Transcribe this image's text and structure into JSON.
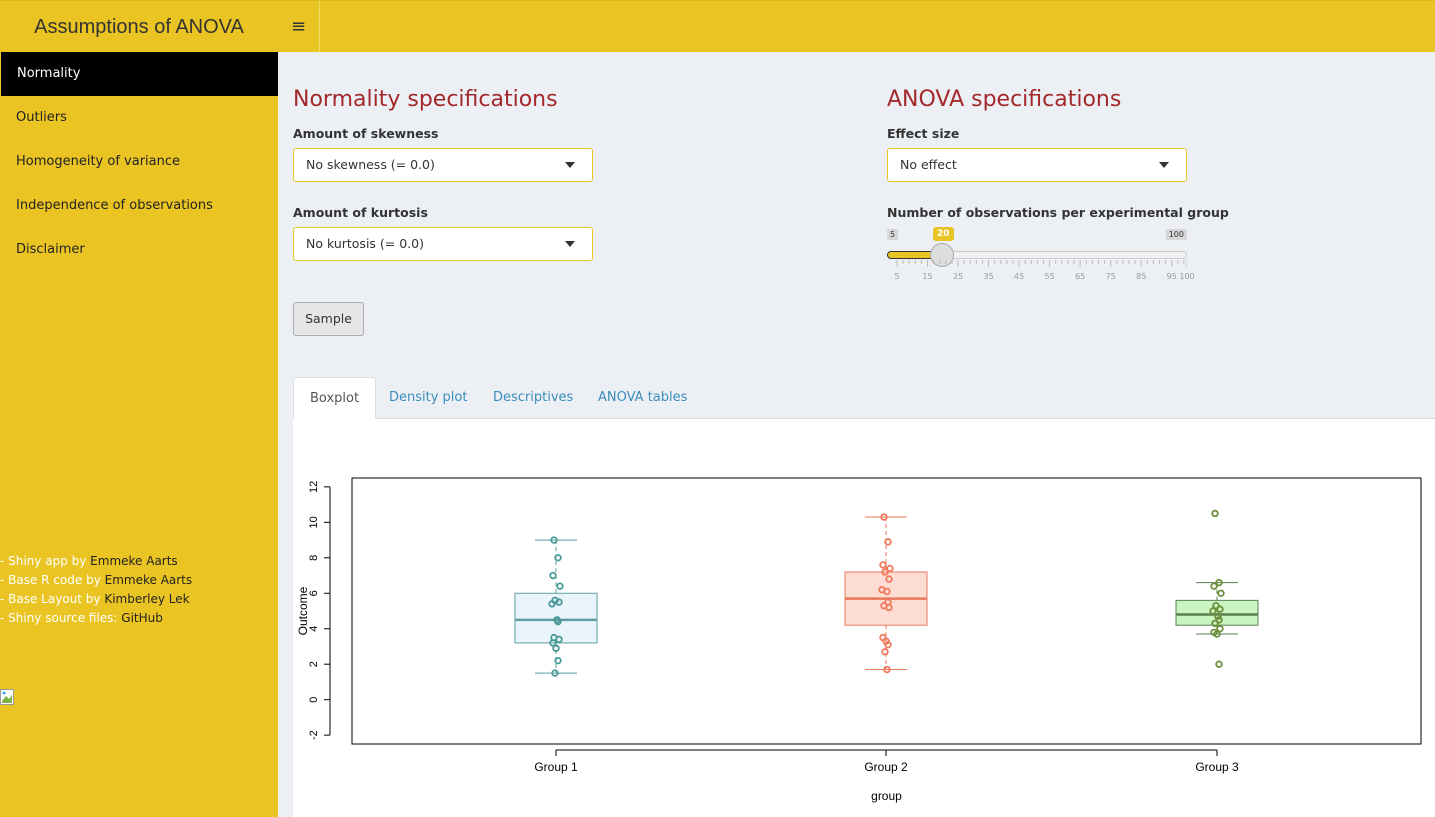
{
  "header": {
    "title": "Assumptions of ANOVA",
    "menu_icon": "hamburger-icon"
  },
  "sidebar": {
    "items": [
      {
        "label": "Normality"
      },
      {
        "label": "Outliers"
      },
      {
        "label": "Homogeneity of variance"
      },
      {
        "label": "Independence of observations"
      },
      {
        "label": "Disclaimer"
      }
    ],
    "credits": [
      {
        "prefix": "- Shiny app by ",
        "name": "Emmeke Aarts"
      },
      {
        "prefix": "- Base R code by ",
        "name": "Emmeke Aarts"
      },
      {
        "prefix": "- Base Layout by ",
        "name": "Kimberley Lek"
      },
      {
        "prefix": "- Shiny source files: ",
        "name": "GitHub"
      }
    ]
  },
  "normality": {
    "title": "Normality specifications",
    "skew_label": "Amount of skewness",
    "skew_value": "No skewness (= 0.0)",
    "kurt_label": "Amount of kurtosis",
    "kurt_value": "No kurtosis (= 0.0)",
    "sample_button": "Sample"
  },
  "anova": {
    "title": "ANOVA specifications",
    "effect_label": "Effect size",
    "effect_value": "No effect",
    "n_label": "Number of observations per experimental group",
    "slider_min": "5",
    "slider_max": "100",
    "slider_value": "20",
    "slider_ticks": [
      "5",
      "15",
      "25",
      "35",
      "45",
      "55",
      "65",
      "75",
      "85",
      "95",
      "100"
    ]
  },
  "tabs": [
    {
      "label": "Boxplot"
    },
    {
      "label": "Density plot"
    },
    {
      "label": "Descriptives"
    },
    {
      "label": "ANOVA tables"
    }
  ],
  "chart_data": {
    "type": "boxplot",
    "xlabel": "group",
    "ylabel": "Outcome",
    "ylim": [
      -2,
      12
    ],
    "yticks": [
      "-2",
      "0",
      "2",
      "4",
      "6",
      "8",
      "10",
      "12"
    ],
    "categories": [
      "Group 1",
      "Group 2",
      "Group 3"
    ],
    "colors": [
      {
        "fill": "#eaf5fb",
        "stroke": "#5f9ea0",
        "point": "#4a9a9a"
      },
      {
        "fill": "#fddcd4",
        "stroke": "#e8775c",
        "point": "#f0785a"
      },
      {
        "fill": "#c8f5c0",
        "stroke": "#5a7f52",
        "point": "#6b8f3a"
      }
    ],
    "boxes": [
      {
        "min": 1.5,
        "q1": 3.2,
        "median": 4.5,
        "q3": 6.0,
        "max": 9.0
      },
      {
        "min": 1.7,
        "q1": 4.2,
        "median": 5.7,
        "q3": 7.2,
        "max": 10.3
      },
      {
        "min": 3.7,
        "q1": 4.2,
        "median": 4.8,
        "q3": 5.6,
        "max": 6.6
      }
    ],
    "points": [
      [
        9.0,
        8.0,
        7.0,
        6.4,
        5.6,
        5.5,
        5.4,
        4.5,
        4.4,
        3.5,
        3.4,
        3.2,
        2.9,
        2.2,
        1.5
      ],
      [
        10.3,
        8.9,
        7.6,
        7.4,
        7.2,
        6.8,
        6.2,
        6.1,
        5.5,
        5.3,
        5.2,
        3.5,
        3.3,
        3.1,
        2.7,
        1.7
      ],
      [
        10.5,
        6.6,
        6.4,
        6.0,
        5.3,
        5.1,
        5.0,
        4.7,
        4.5,
        4.3,
        4.0,
        3.8,
        3.7,
        2.0
      ]
    ]
  }
}
